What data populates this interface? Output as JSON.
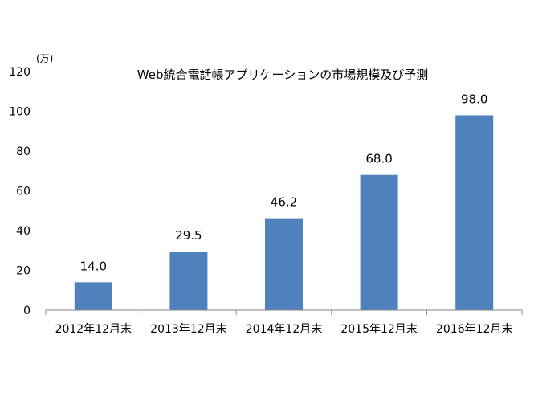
{
  "chart_data": {
    "type": "bar",
    "title": "Web統合電話帳アプリケーションの市場規模及び予測",
    "unit": "(万)",
    "categories": [
      "2012年12月末",
      "2013年12月末",
      "2014年12月末",
      "2015年12月末",
      "2016年12月末"
    ],
    "values": [
      14.0,
      29.5,
      46.2,
      68.0,
      98.0
    ],
    "value_labels": [
      "14.0",
      "29.5",
      "46.2",
      "68.0",
      "98.0"
    ],
    "yticks": [
      "0",
      "20",
      "40",
      "60",
      "80",
      "100",
      "120"
    ],
    "ylim": [
      0,
      120
    ],
    "grid": false,
    "legend": "none",
    "bar_color": "#4f81bd",
    "axis_color": "#868686"
  }
}
